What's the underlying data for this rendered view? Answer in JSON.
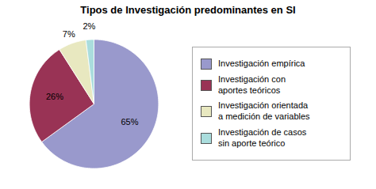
{
  "chart_data": {
    "type": "pie",
    "title": "Tipos de Investigación predominantes en SI",
    "categories": [
      "Investigación empírica",
      "Investigación con\naportes teóricos",
      "Investigación orientada\na medición de variables",
      "Investigación de casos\nsin aporte teórico"
    ],
    "values": [
      65,
      26,
      7,
      2
    ],
    "value_labels": [
      "65%",
      "26%",
      "7%",
      "2%"
    ],
    "colors": [
      "#9999cc",
      "#993355",
      "#e8e8c0",
      "#aadddd"
    ],
    "data_labels": true,
    "legend": "right"
  }
}
